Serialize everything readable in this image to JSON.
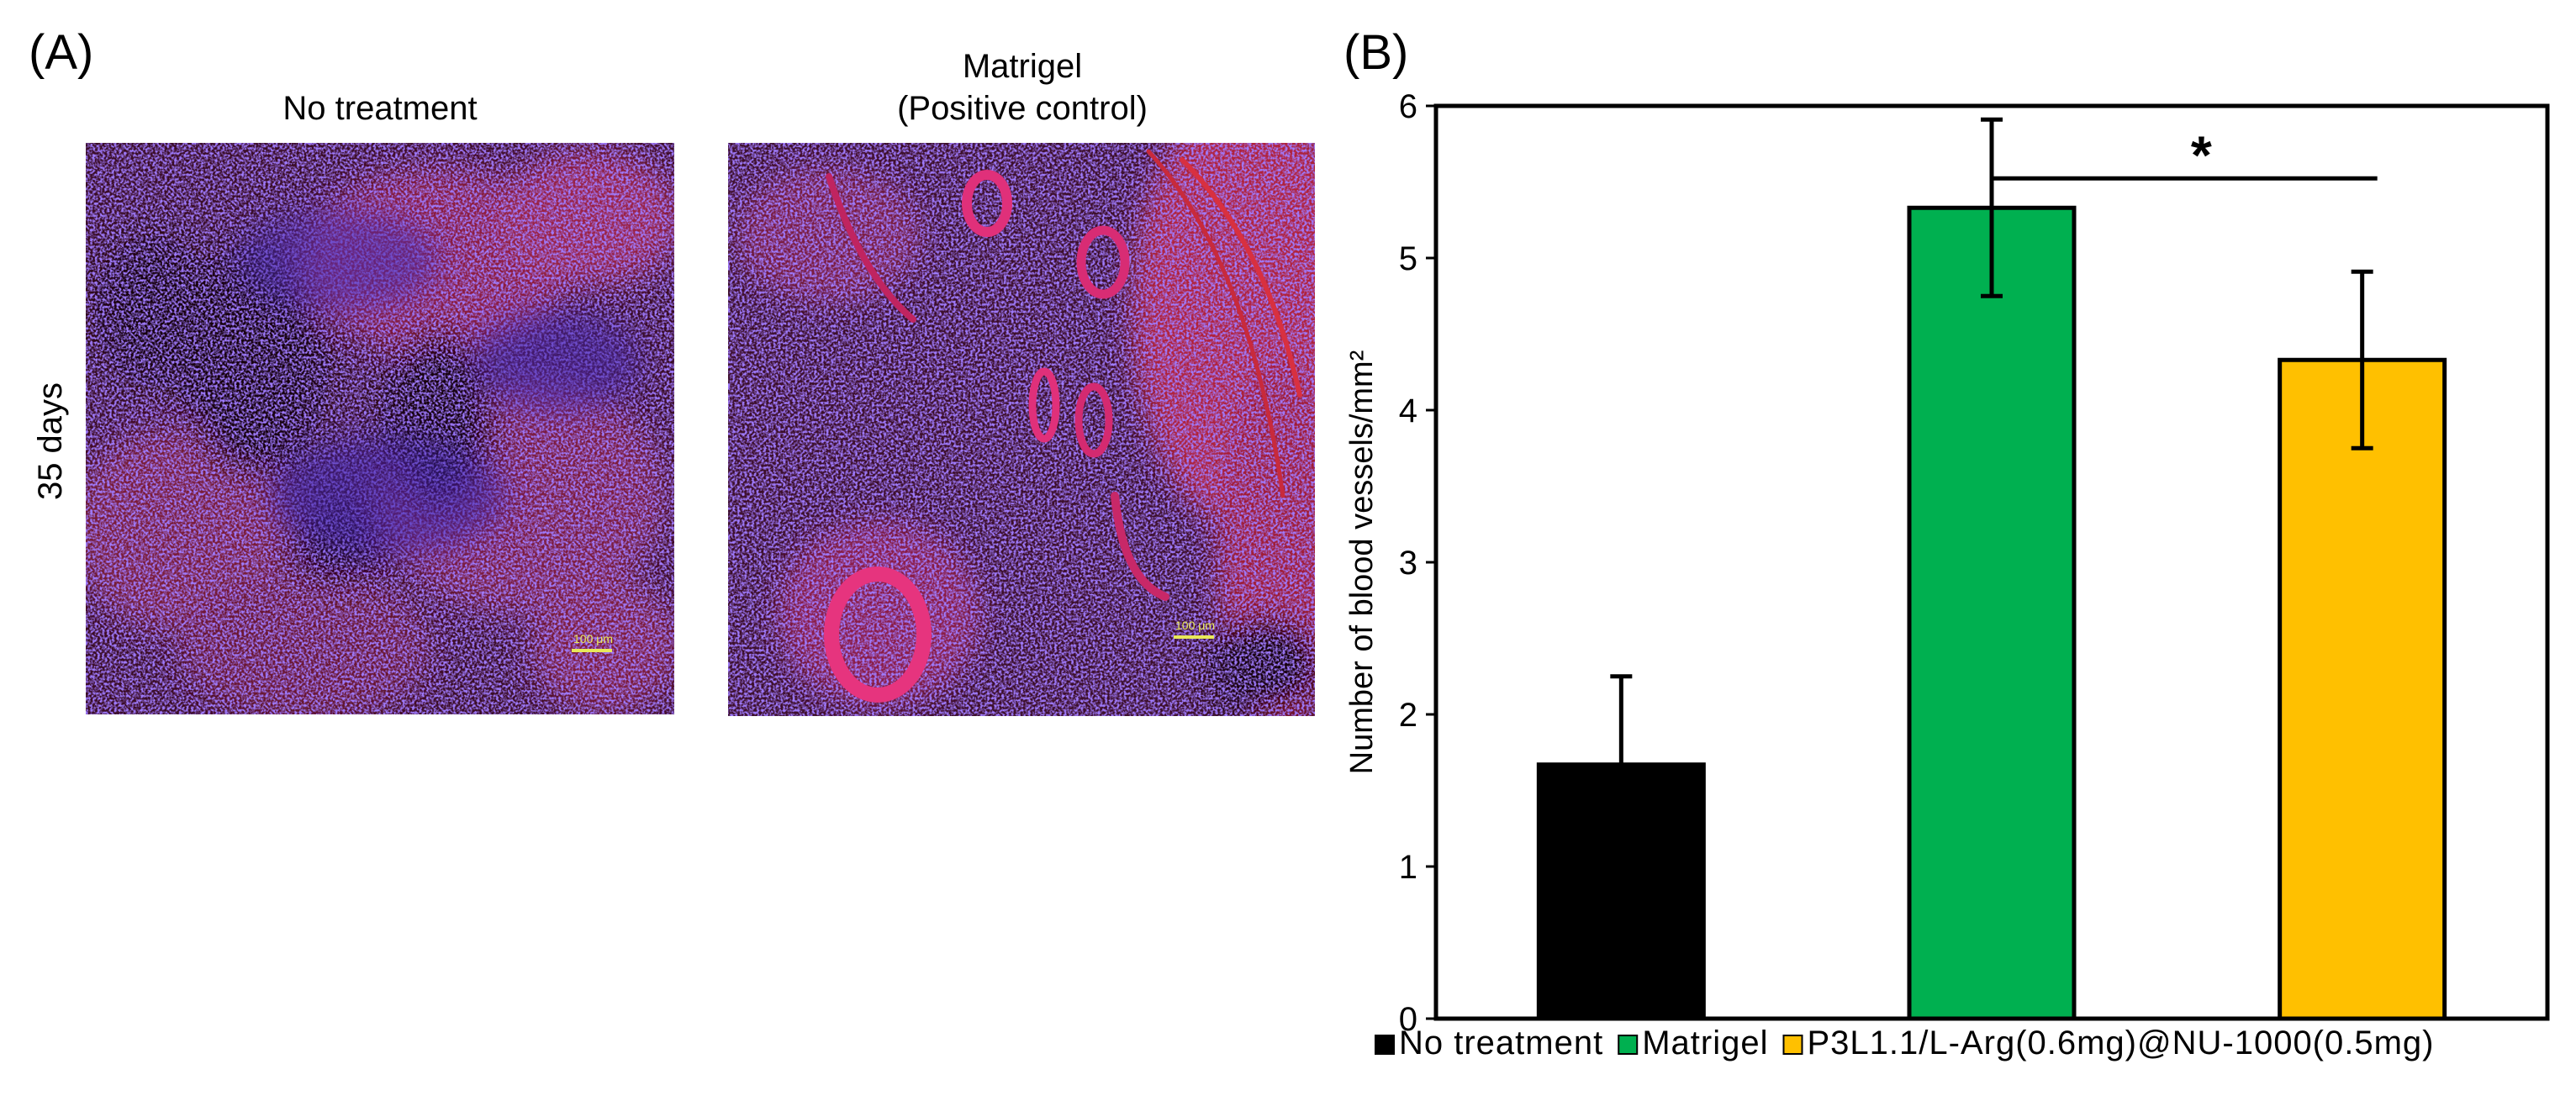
{
  "panel_a": {
    "letter": "(A)",
    "row_label": "35 days",
    "images": [
      {
        "title_lines": [
          "No treatment"
        ],
        "scalebar": "100 μm"
      },
      {
        "title_lines": [
          "Matrigel",
          "(Positive control)"
        ],
        "scalebar": "100 μm"
      }
    ]
  },
  "panel_b": {
    "letter": "(B)"
  },
  "colors": {
    "no_treatment": "#000000",
    "matrigel": "#00b050",
    "p3l": "#ffc000"
  },
  "chart_data": {
    "type": "bar",
    "title": "",
    "xlabel": "",
    "ylabel": "Number of blood vessels/mm²",
    "ylim": [
      0,
      6
    ],
    "yticks": [
      "0",
      "1",
      "2",
      "3",
      "4",
      "5",
      "6"
    ],
    "grid": false,
    "legend_position": "bottom",
    "categories": [
      "No treatment",
      "Matrigel",
      "P3L1.1/L-Arg(0.6mg)@NU-1000(0.5mg)"
    ],
    "values": [
      1.67,
      5.33,
      4.33
    ],
    "error_upper": [
      0.58,
      0.58,
      0.58
    ],
    "error_lower": [
      0.0,
      0.58,
      0.58
    ],
    "significance": [
      {
        "from": 1,
        "to": 2,
        "label": "*"
      }
    ]
  }
}
